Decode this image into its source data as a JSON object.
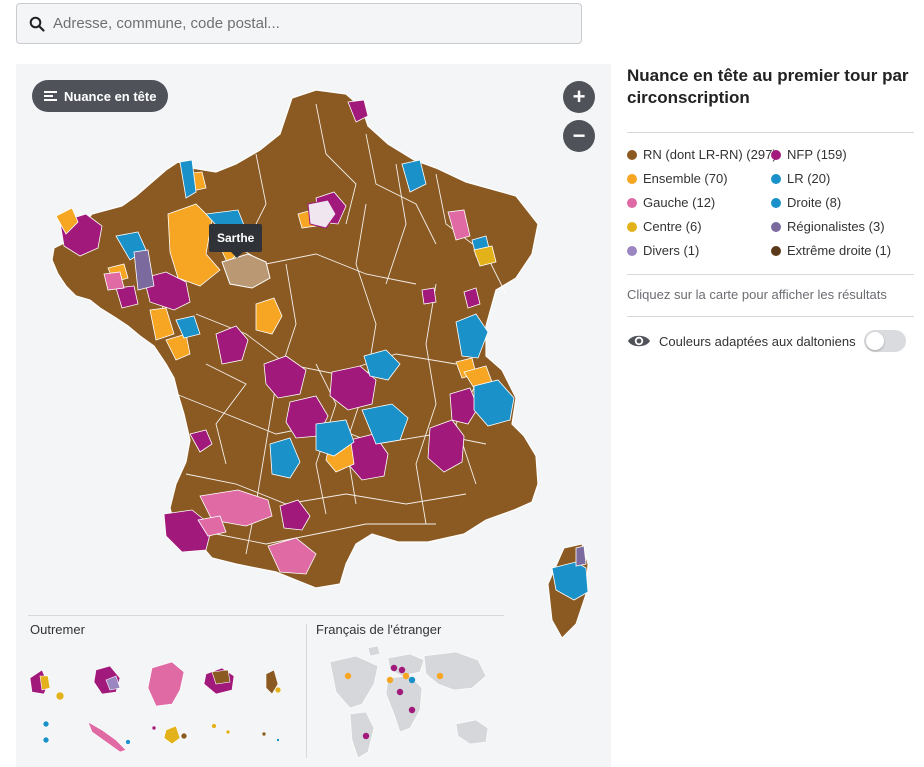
{
  "search": {
    "placeholder": "Adresse, commune, code postal..."
  },
  "map": {
    "mode_button": "Nuance en tête",
    "zoom_in": "+",
    "zoom_out": "−",
    "tooltip": "Sarthe",
    "outremer_title": "Outremer",
    "etranger_title": "Français de l'étranger"
  },
  "legend": {
    "title": "Nuance en tête au premier tour par circonscription",
    "items": [
      {
        "label": "RN (dont LR-RN) (297)",
        "color": "#8b5a22"
      },
      {
        "label": "NFP (159)",
        "color": "#a1197a"
      },
      {
        "label": "Ensemble (70)",
        "color": "#f6a623"
      },
      {
        "label": "LR (20)",
        "color": "#1a91c8"
      },
      {
        "label": "Gauche (12)",
        "color": "#df6aa4"
      },
      {
        "label": "Droite (8)",
        "color": "#1a91c8"
      },
      {
        "label": "Centre (6)",
        "color": "#e3b21a"
      },
      {
        "label": "Régionalistes (3)",
        "color": "#7b6a9e"
      },
      {
        "label": "Divers (1)",
        "color": "#9b86c2"
      },
      {
        "label": "Extrême droite (1)",
        "color": "#5a3a18"
      }
    ],
    "hint": "Cliquez sur la carte pour afficher les résultats",
    "colorblind_label": "Couleurs adaptées aux daltoniens"
  }
}
